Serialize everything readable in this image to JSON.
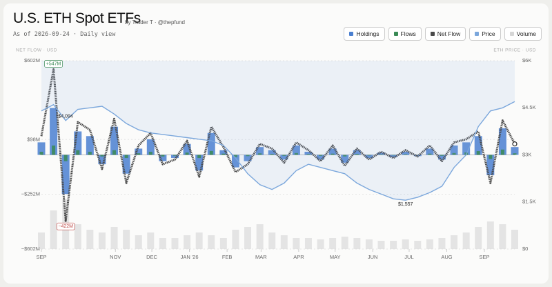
{
  "header": {
    "title": "U.S. ETH Spot ETFs",
    "byline": "by Trader T · @thepfund",
    "subtitle": "As of 2026-09-24 · Daily view"
  },
  "chart_data": {
    "type": "combo",
    "y_axis_label": "NET FLOW · USD",
    "y2_axis_label": "ETH PRICE · USD",
    "x": [
      0,
      10,
      20,
      30,
      40,
      50,
      60,
      70,
      80,
      90,
      100,
      110,
      120,
      130,
      140,
      150,
      160,
      170,
      180,
      190,
      200,
      210,
      220,
      230,
      240,
      250,
      260,
      270,
      280,
      290,
      300,
      310,
      320,
      330,
      340,
      350,
      360,
      370,
      380,
      390
    ],
    "xlim": [
      0,
      390
    ],
    "xticks": [
      {
        "value": 0,
        "label": "SEP"
      },
      {
        "value": 61,
        "label": "NOV"
      },
      {
        "value": 91,
        "label": "DEC"
      },
      {
        "value": 122,
        "label": "JAN '26"
      },
      {
        "value": 153,
        "label": "FEB"
      },
      {
        "value": 181,
        "label": "MAR"
      },
      {
        "value": 212,
        "label": "APR"
      },
      {
        "value": 242,
        "label": "MAY"
      },
      {
        "value": 273,
        "label": "JUN"
      },
      {
        "value": 303,
        "label": "JUL"
      },
      {
        "value": 334,
        "label": "AUG"
      },
      {
        "value": 365,
        "label": "SEP"
      }
    ],
    "ylim": [
      -602,
      602
    ],
    "yticks": [
      {
        "value": 602,
        "label": "$602M"
      },
      {
        "value": 98,
        "label": "$98M"
      },
      {
        "value": -252,
        "label": "−$252M"
      },
      {
        "value": -602,
        "label": "−$602M"
      }
    ],
    "y2lim": [
      0,
      6000
    ],
    "y2ticks": [
      {
        "value": 6000,
        "label": "$6K"
      },
      {
        "value": 4500,
        "label": "$4.5K"
      },
      {
        "value": 3000,
        "label": "$3K"
      },
      {
        "value": 1500,
        "label": "$1.5K"
      },
      {
        "value": 0,
        "label": "$0"
      }
    ],
    "vlim": [
      0,
      2000
    ],
    "grid": true,
    "series": [
      {
        "name": "Holdings",
        "kind": "bar",
        "color": "#4a7fd0",
        "values": [
          80,
          300,
          -250,
          150,
          120,
          -60,
          180,
          -120,
          40,
          100,
          -40,
          -20,
          70,
          -100,
          140,
          30,
          -80,
          -40,
          50,
          30,
          -30,
          60,
          20,
          -30,
          40,
          -50,
          30,
          -20,
          15,
          -15,
          20,
          -8,
          40,
          -30,
          60,
          80,
          120,
          -130,
          170,
          50
        ]
      },
      {
        "name": "Flows",
        "kind": "bar",
        "color": "#3a8a55",
        "values": [
          20,
          60,
          -40,
          30,
          20,
          -10,
          30,
          -20,
          10,
          20,
          -10,
          -5,
          15,
          -20,
          25,
          8,
          -15,
          -8,
          10,
          6,
          -6,
          12,
          5,
          -6,
          8,
          -10,
          6,
          -4,
          3,
          -3,
          4,
          -2,
          8,
          -6,
          12,
          16,
          24,
          -26,
          34,
          10
        ]
      },
      {
        "name": "Net Flow",
        "kind": "line",
        "color": "#4a4a4a",
        "values": [
          120,
          547,
          -422,
          210,
          160,
          -90,
          230,
          -180,
          60,
          140,
          -60,
          -30,
          90,
          -140,
          180,
          50,
          -110,
          -60,
          70,
          40,
          -50,
          80,
          30,
          -40,
          60,
          -70,
          40,
          -30,
          20,
          -20,
          30,
          -10,
          60,
          -40,
          80,
          100,
          150,
          -180,
          220,
          70
        ]
      },
      {
        "name": "Price",
        "kind": "line",
        "axis": "y2",
        "color": "#7ba7dc",
        "values": [
          4400,
          4600,
          4094,
          4450,
          4500,
          4550,
          4300,
          4000,
          3800,
          3700,
          3650,
          3600,
          3550,
          3500,
          3450,
          3300,
          2900,
          2400,
          2050,
          1900,
          2100,
          2500,
          2700,
          2600,
          2500,
          2400,
          2100,
          1900,
          1750,
          1600,
          1557,
          1650,
          1800,
          2000,
          2600,
          3000,
          3900,
          4400,
          4500,
          4700
        ]
      },
      {
        "name": "Volume",
        "kind": "volume",
        "color": "#d6d6d6",
        "values": [
          600,
          1400,
          1800,
          900,
          700,
          600,
          800,
          700,
          500,
          600,
          400,
          400,
          500,
          600,
          500,
          400,
          700,
          800,
          900,
          600,
          500,
          400,
          400,
          350,
          400,
          450,
          400,
          350,
          300,
          300,
          350,
          300,
          350,
          400,
          500,
          600,
          800,
          1000,
          900,
          700
        ]
      }
    ],
    "annotations": [
      {
        "text": "+547M",
        "x": 10,
        "y": 547,
        "color": "#3a8a55"
      },
      {
        "text": "−422M",
        "x": 20,
        "y": -422,
        "color": "#c0504d"
      },
      {
        "text": "$4,094",
        "x": 20,
        "y2": 4094,
        "color": "#222222"
      },
      {
        "text": "$1,557",
        "x": 300,
        "y2": 1557,
        "color": "#222222"
      }
    ]
  }
}
